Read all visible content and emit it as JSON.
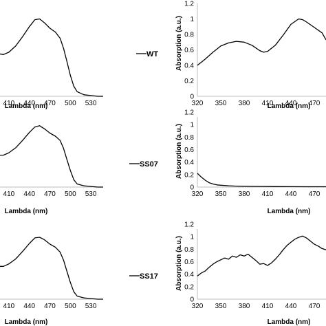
{
  "chart_data": [
    {
      "id": "left-1",
      "type": "line",
      "xlabel": "Lambda (nm)",
      "ylabel": "",
      "xticks": [
        410,
        440,
        470,
        500,
        530
      ],
      "xlim": [
        395,
        548
      ],
      "ylim": [
        0,
        1.2
      ],
      "legend": "WT",
      "x": [
        395,
        402,
        410,
        420,
        430,
        440,
        448,
        455,
        462,
        470,
        478,
        485,
        490,
        495,
        500,
        505,
        510,
        520,
        530,
        540,
        548
      ],
      "y": [
        0.55,
        0.54,
        0.57,
        0.65,
        0.77,
        0.9,
        0.99,
        1.0,
        0.95,
        0.88,
        0.83,
        0.75,
        0.62,
        0.45,
        0.27,
        0.13,
        0.06,
        0.02,
        0.01,
        0.0,
        0.0
      ]
    },
    {
      "id": "right-1",
      "type": "line",
      "xlabel": "Lambda (nm)",
      "ylabel": "Absorption (a.u.)",
      "xticks": [
        320,
        350,
        380,
        410,
        440,
        470
      ],
      "yticks": [
        0,
        0.2,
        0.4,
        0.6,
        0.8,
        1,
        1.2
      ],
      "xlim": [
        320,
        485
      ],
      "ylim": [
        0,
        1.2
      ],
      "x": [
        320,
        330,
        340,
        350,
        360,
        370,
        380,
        390,
        400,
        405,
        410,
        420,
        430,
        440,
        450,
        455,
        460,
        470,
        480,
        485
      ],
      "y": [
        0.4,
        0.48,
        0.57,
        0.65,
        0.69,
        0.71,
        0.7,
        0.66,
        0.59,
        0.57,
        0.58,
        0.66,
        0.79,
        0.93,
        1.0,
        0.99,
        0.96,
        0.89,
        0.82,
        0.73
      ]
    },
    {
      "id": "left-2",
      "type": "line",
      "xlabel": "Lambda (nm)",
      "ylabel": "",
      "xticks": [
        410,
        440,
        470,
        500,
        530
      ],
      "xlim": [
        395,
        548
      ],
      "ylim": [
        0,
        1.2
      ],
      "legend": "SS07",
      "x": [
        395,
        402,
        410,
        420,
        430,
        440,
        448,
        455,
        462,
        470,
        478,
        485,
        490,
        495,
        500,
        505,
        510,
        520,
        530,
        540,
        548
      ],
      "y": [
        0.52,
        0.52,
        0.56,
        0.64,
        0.76,
        0.89,
        0.98,
        1.0,
        0.95,
        0.88,
        0.83,
        0.76,
        0.63,
        0.45,
        0.27,
        0.12,
        0.05,
        0.02,
        0.01,
        0.0,
        0.0
      ]
    },
    {
      "id": "right-2",
      "type": "line",
      "xlabel": "Lambda (nm)",
      "ylabel": "Absorption (a.u.)",
      "xticks": [
        320,
        350,
        380,
        410,
        440,
        470
      ],
      "yticks": [
        0,
        0.2,
        0.4,
        0.6,
        0.8,
        1,
        1.2
      ],
      "xlim": [
        320,
        485
      ],
      "ylim": [
        0,
        1.2
      ],
      "x": [
        320,
        325,
        330,
        335,
        340,
        345,
        350,
        360,
        370,
        380,
        400,
        420,
        440,
        460,
        485
      ],
      "y": [
        0.22,
        0.16,
        0.11,
        0.07,
        0.05,
        0.035,
        0.03,
        0.02,
        0.015,
        0.012,
        0.01,
        0.008,
        0.007,
        0.006,
        0.005
      ]
    },
    {
      "id": "left-3",
      "type": "line",
      "xlabel": "Lambda (nm)",
      "ylabel": "",
      "xticks": [
        410,
        440,
        470,
        500,
        530
      ],
      "xlim": [
        395,
        548
      ],
      "ylim": [
        0,
        1.2
      ],
      "legend": "SS17",
      "x": [
        395,
        402,
        410,
        420,
        430,
        440,
        448,
        455,
        462,
        470,
        478,
        485,
        490,
        495,
        500,
        505,
        510,
        520,
        530,
        540,
        548
      ],
      "y": [
        0.53,
        0.53,
        0.57,
        0.65,
        0.77,
        0.9,
        0.99,
        1.0,
        0.96,
        0.89,
        0.84,
        0.76,
        0.63,
        0.45,
        0.27,
        0.12,
        0.05,
        0.02,
        0.01,
        0.0,
        0.0
      ]
    },
    {
      "id": "right-3",
      "type": "line",
      "xlabel": "Lambda (nm)",
      "ylabel": "Absorption (a.u.)",
      "xticks": [
        320,
        350,
        380,
        410,
        440,
        470
      ],
      "yticks": [
        0,
        0.2,
        0.4,
        0.6,
        0.8,
        1,
        1.2
      ],
      "xlim": [
        320,
        485
      ],
      "ylim": [
        0,
        1.2
      ],
      "x": [
        320,
        325,
        330,
        335,
        340,
        345,
        350,
        355,
        360,
        365,
        370,
        375,
        380,
        385,
        390,
        395,
        400,
        405,
        410,
        415,
        420,
        425,
        430,
        435,
        440,
        445,
        450,
        455,
        460,
        465,
        470,
        475,
        480,
        485
      ],
      "y": [
        0.37,
        0.42,
        0.45,
        0.51,
        0.56,
        0.6,
        0.63,
        0.66,
        0.64,
        0.69,
        0.67,
        0.71,
        0.69,
        0.72,
        0.67,
        0.62,
        0.56,
        0.57,
        0.54,
        0.58,
        0.64,
        0.71,
        0.79,
        0.86,
        0.91,
        0.96,
        0.99,
        1.01,
        0.98,
        0.93,
        0.88,
        0.85,
        0.81,
        0.79
      ]
    }
  ]
}
